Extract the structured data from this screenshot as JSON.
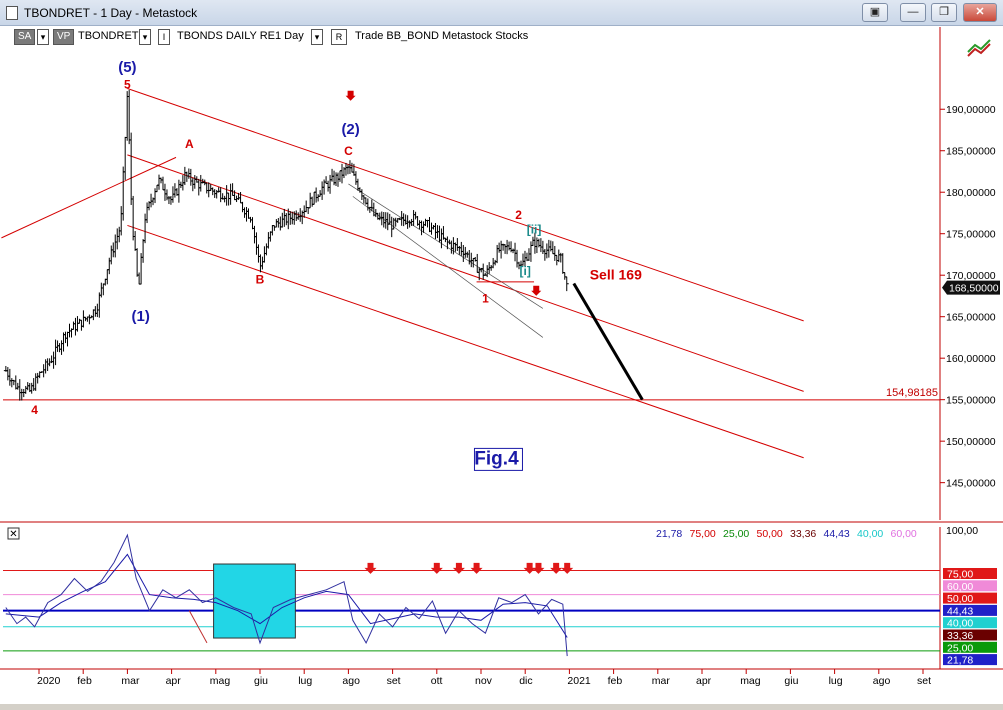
{
  "window": {
    "title": "TBONDRET - 1 Day - Metastock",
    "buttons": [
      "▣",
      "—",
      "❐",
      "✕"
    ]
  },
  "toolbar": {
    "sa_label": "SA",
    "vp_label": "VP",
    "symbol": "TBONDRET",
    "interval_desc": "TBONDS DAILY RE",
    "period": "1 Day",
    "r_label": "R",
    "rest": "Trade  BB_BOND  Metastock  Stocks"
  },
  "colors": {
    "bull": "#000000",
    "wave_red": "#d40000",
    "wave_blue": "#1a1aa8",
    "axis_red": "#c00000",
    "teal": "#1a8a8a"
  },
  "chart_data": [
    {
      "type": "ohlc",
      "title": "",
      "price_axis": {
        "ticks": [
          "190,00000",
          "185,00000",
          "180,00000",
          "175,00000",
          "170,00000",
          "165,00000",
          "160,00000",
          "155,00000",
          "150,00000",
          "145,00000"
        ],
        "tick_values": [
          190,
          185,
          180,
          175,
          170,
          165,
          160,
          155,
          150,
          145
        ],
        "ylim": [
          140.5,
          197.5
        ]
      },
      "last_price_label": "168,50000",
      "level_label": "154,98185",
      "level_value": 154.98185,
      "x_ticks": [
        "2020",
        "feb",
        "mar",
        "apr",
        "mag",
        "giu",
        "lug",
        "ago",
        "set",
        "ott",
        "nov",
        "dic",
        "2021",
        "feb",
        "mar",
        "apr",
        "mag",
        "giu",
        "lug",
        "ago",
        "set"
      ],
      "x_tick_pos": [
        0,
        1,
        2,
        3,
        4,
        5,
        6,
        7,
        8,
        9,
        10,
        11,
        12,
        13,
        14,
        15,
        16,
        17,
        18,
        19,
        20
      ],
      "close_series_monthly_approx": [
        {
          "t": -0.75,
          "v": 158.5
        },
        {
          "t": -0.5,
          "v": 156.5
        },
        {
          "t": -0.2,
          "v": 156.0
        },
        {
          "t": 0.0,
          "v": 158.0
        },
        {
          "t": 0.3,
          "v": 160.0
        },
        {
          "t": 0.6,
          "v": 163.0
        },
        {
          "t": 1.0,
          "v": 164.5
        },
        {
          "t": 1.3,
          "v": 166.0
        },
        {
          "t": 1.6,
          "v": 172.0
        },
        {
          "t": 1.85,
          "v": 176.0
        },
        {
          "t": 2.0,
          "v": 192.0
        },
        {
          "t": 2.1,
          "v": 177.0
        },
        {
          "t": 2.25,
          "v": 168.0
        },
        {
          "t": 2.4,
          "v": 177.0
        },
        {
          "t": 2.7,
          "v": 181.5
        },
        {
          "t": 3.0,
          "v": 179.0
        },
        {
          "t": 3.3,
          "v": 182.0
        },
        {
          "t": 3.6,
          "v": 181.0
        },
        {
          "t": 4.0,
          "v": 180.0
        },
        {
          "t": 4.4,
          "v": 179.5
        },
        {
          "t": 4.8,
          "v": 177.0
        },
        {
          "t": 5.0,
          "v": 171.0
        },
        {
          "t": 5.3,
          "v": 176.0
        },
        {
          "t": 5.7,
          "v": 177.0
        },
        {
          "t": 6.0,
          "v": 178.0
        },
        {
          "t": 6.4,
          "v": 180.5
        },
        {
          "t": 6.8,
          "v": 182.0
        },
        {
          "t": 7.0,
          "v": 183.0
        },
        {
          "t": 7.3,
          "v": 180.0
        },
        {
          "t": 7.6,
          "v": 177.0
        },
        {
          "t": 8.0,
          "v": 176.0
        },
        {
          "t": 8.4,
          "v": 177.0
        },
        {
          "t": 8.8,
          "v": 176.0
        },
        {
          "t": 9.2,
          "v": 174.0
        },
        {
          "t": 9.6,
          "v": 173.0
        },
        {
          "t": 9.9,
          "v": 171.0
        },
        {
          "t": 10.1,
          "v": 170.0
        },
        {
          "t": 10.4,
          "v": 173.0
        },
        {
          "t": 10.7,
          "v": 173.5
        },
        {
          "t": 10.9,
          "v": 171.0
        },
        {
          "t": 11.2,
          "v": 174.0
        },
        {
          "t": 11.5,
          "v": 173.0
        },
        {
          "t": 11.8,
          "v": 172.0
        },
        {
          "t": 11.95,
          "v": 168.5
        }
      ],
      "annotations": [
        {
          "text": "(5)",
          "color": "blue",
          "t": 2.0,
          "v": 194.5
        },
        {
          "text": "5",
          "color": "red",
          "t": 2.0,
          "v": 192.5
        },
        {
          "text": "A",
          "color": "red",
          "t": 3.4,
          "v": 185.3
        },
        {
          "text": "B",
          "color": "red",
          "t": 5.0,
          "v": 169.0
        },
        {
          "text": "(1)",
          "color": "blue",
          "t": 2.3,
          "v": 164.5
        },
        {
          "text": "(2)",
          "color": "blue",
          "t": 7.05,
          "v": 187.0
        },
        {
          "text": "C",
          "color": "red",
          "t": 7.0,
          "v": 184.5
        },
        {
          "text": "2",
          "color": "red",
          "t": 10.85,
          "v": 176.8
        },
        {
          "text": "[ii]",
          "color": "teal",
          "t": 11.2,
          "v": 175.0
        },
        {
          "text": "[i]",
          "color": "teal",
          "t": 11.0,
          "v": 170.0
        },
        {
          "text": "1",
          "color": "red",
          "t": 10.1,
          "v": 166.7
        },
        {
          "text": "4",
          "color": "red",
          "t": -0.1,
          "v": 153.3
        },
        {
          "text": "Sell 169",
          "color": "red",
          "t": 13.05,
          "v": 169.5
        },
        {
          "text": "Fig.4",
          "color": "blue",
          "t": 10.35,
          "v": 147.2
        }
      ]
    },
    {
      "type": "line",
      "title": "",
      "header_values": [
        {
          "text": "21,78",
          "color": "#1a1aa8"
        },
        {
          "text": "75,00",
          "color": "#d40000"
        },
        {
          "text": "25,00",
          "color": "#0a8a0a"
        },
        {
          "text": "50,00",
          "color": "#d40000"
        },
        {
          "text": "33,36",
          "color": "#6a0000"
        },
        {
          "text": "44,43",
          "color": "#1a1aa8"
        },
        {
          "text": "40,00",
          "color": "#18c8c8"
        },
        {
          "text": "60,00",
          "color": "#e070e0"
        }
      ],
      "axis_top_label": "100,00",
      "right_badges": [
        {
          "text": "75,00",
          "bg": "#e01818",
          "value": 75
        },
        {
          "text": "60,00",
          "bg": "#f08ad8",
          "value": 60
        },
        {
          "text": "50,00",
          "bg": "#e01818",
          "value": 50
        },
        {
          "text": "44,43",
          "bg": "#2020c8",
          "value": 44.43
        },
        {
          "text": "40,00",
          "bg": "#20d0d0",
          "value": 40
        },
        {
          "text": "33,36",
          "bg": "#6a0000",
          "value": 33.36
        },
        {
          "text": "25,00",
          "bg": "#0a9a0a",
          "value": 25
        },
        {
          "text": "21,78",
          "bg": "#2020c8",
          "value": 21.78
        }
      ],
      "levels": [
        75,
        60,
        50,
        40,
        25
      ],
      "ylim": [
        15,
        102
      ],
      "oscillator": [
        {
          "t": -0.75,
          "v": 52
        },
        {
          "t": -0.5,
          "v": 42
        },
        {
          "t": -0.3,
          "v": 46
        },
        {
          "t": -0.1,
          "v": 40
        },
        {
          "t": 0.2,
          "v": 55
        },
        {
          "t": 0.5,
          "v": 60
        },
        {
          "t": 0.8,
          "v": 70
        },
        {
          "t": 1.1,
          "v": 62
        },
        {
          "t": 1.4,
          "v": 68
        },
        {
          "t": 1.7,
          "v": 80
        },
        {
          "t": 2.0,
          "v": 97
        },
        {
          "t": 2.2,
          "v": 70
        },
        {
          "t": 2.5,
          "v": 50
        },
        {
          "t": 2.8,
          "v": 63
        },
        {
          "t": 3.1,
          "v": 58
        },
        {
          "t": 3.4,
          "v": 63
        },
        {
          "t": 3.7,
          "v": 55
        },
        {
          "t": 4.0,
          "v": 58
        },
        {
          "t": 4.4,
          "v": 52
        },
        {
          "t": 4.8,
          "v": 48
        },
        {
          "t": 5.0,
          "v": 30
        },
        {
          "t": 5.3,
          "v": 52
        },
        {
          "t": 5.7,
          "v": 57
        },
        {
          "t": 6.1,
          "v": 60
        },
        {
          "t": 6.5,
          "v": 63
        },
        {
          "t": 6.9,
          "v": 68
        },
        {
          "t": 7.1,
          "v": 44
        },
        {
          "t": 7.4,
          "v": 30
        },
        {
          "t": 7.7,
          "v": 48
        },
        {
          "t": 8.0,
          "v": 40
        },
        {
          "t": 8.3,
          "v": 52
        },
        {
          "t": 8.6,
          "v": 45
        },
        {
          "t": 8.9,
          "v": 56
        },
        {
          "t": 9.2,
          "v": 36
        },
        {
          "t": 9.5,
          "v": 50
        },
        {
          "t": 9.8,
          "v": 42
        },
        {
          "t": 10.1,
          "v": 36
        },
        {
          "t": 10.4,
          "v": 58
        },
        {
          "t": 10.7,
          "v": 55
        },
        {
          "t": 11.0,
          "v": 60
        },
        {
          "t": 11.3,
          "v": 48
        },
        {
          "t": 11.6,
          "v": 57
        },
        {
          "t": 11.85,
          "v": 54
        },
        {
          "t": 11.95,
          "v": 21.78
        }
      ],
      "smoothed": [
        {
          "t": -0.75,
          "v": 48
        },
        {
          "t": 0.0,
          "v": 46
        },
        {
          "t": 0.5,
          "v": 55
        },
        {
          "t": 1.0,
          "v": 62
        },
        {
          "t": 1.5,
          "v": 68
        },
        {
          "t": 2.0,
          "v": 85
        },
        {
          "t": 2.5,
          "v": 60
        },
        {
          "t": 3.0,
          "v": 58
        },
        {
          "t": 3.5,
          "v": 57
        },
        {
          "t": 4.0,
          "v": 55
        },
        {
          "t": 4.5,
          "v": 50
        },
        {
          "t": 5.0,
          "v": 42
        },
        {
          "t": 5.5,
          "v": 52
        },
        {
          "t": 6.0,
          "v": 58
        },
        {
          "t": 6.5,
          "v": 62
        },
        {
          "t": 7.0,
          "v": 60
        },
        {
          "t": 7.5,
          "v": 42
        },
        {
          "t": 8.0,
          "v": 45
        },
        {
          "t": 8.5,
          "v": 48
        },
        {
          "t": 9.0,
          "v": 46
        },
        {
          "t": 9.5,
          "v": 46
        },
        {
          "t": 10.0,
          "v": 44
        },
        {
          "t": 10.5,
          "v": 54
        },
        {
          "t": 11.0,
          "v": 55
        },
        {
          "t": 11.5,
          "v": 53
        },
        {
          "t": 11.95,
          "v": 33.36
        }
      ],
      "sell_arrows_t": [
        7.5,
        9.0,
        9.5,
        9.9,
        11.1,
        11.3,
        11.7,
        11.95
      ]
    }
  ]
}
